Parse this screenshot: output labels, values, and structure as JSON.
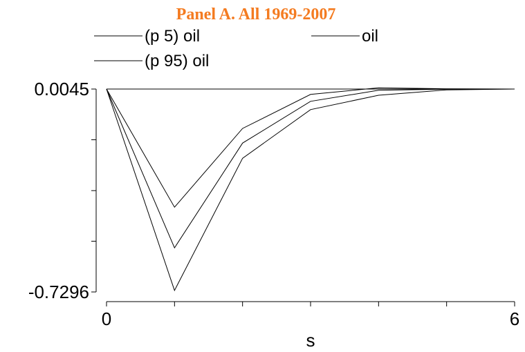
{
  "chart_data": {
    "type": "line",
    "title": "Panel A. All 1969-2007",
    "xlabel": "s",
    "ylabel": "",
    "x": [
      0,
      1,
      2,
      3,
      4,
      5,
      6
    ],
    "xlim": [
      0,
      6
    ],
    "ylim": [
      -0.7296,
      0.0045
    ],
    "x_tick_labels": [
      "0",
      "6"
    ],
    "y_tick_labels": [
      "0.0045",
      "-0.7296"
    ],
    "x_tick_values": [
      0,
      1,
      2,
      3,
      4,
      5,
      6
    ],
    "y_tick_values": [
      0.0045,
      -0.179,
      -0.363,
      -0.546,
      -0.7296
    ],
    "series": [
      {
        "name": "(p 5) oil",
        "values": [
          0.0045,
          -0.423,
          -0.138,
          -0.015,
          0.009,
          0.0055,
          0.0045
        ]
      },
      {
        "name": "oil",
        "values": [
          0.0045,
          -0.57,
          -0.191,
          -0.04,
          0.0,
          0.004,
          0.0045
        ]
      },
      {
        "name": "(p 95) oil",
        "values": [
          0.0045,
          -0.724,
          -0.246,
          -0.07,
          -0.018,
          0.0015,
          0.0045
        ]
      }
    ],
    "horizontal_reference_line": 0.0045,
    "legend": {
      "placement": "top",
      "columns": 2
    },
    "grid": false,
    "line_color": "#000000",
    "title_color": "#f47b20"
  }
}
